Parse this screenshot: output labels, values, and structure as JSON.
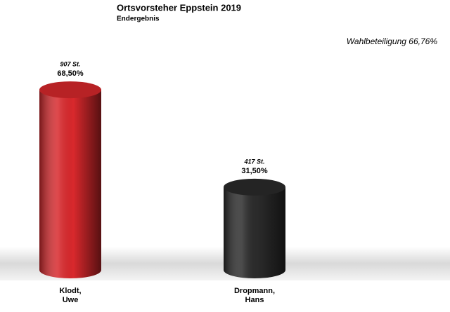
{
  "chart_data": {
    "type": "cylinder-bar",
    "title": "Ortsvorsteher Eppstein 2019",
    "subtitle": "Endergebnis",
    "annotation": "Wahlbeteiligung 66,76%",
    "categories": [
      "Klodt,\nUwe",
      "Dropmann,\nHans"
    ],
    "values": [
      68.5,
      31.5
    ],
    "value_labels": [
      "68,50%",
      "31,50%"
    ],
    "votes": [
      907,
      417
    ],
    "vote_labels": [
      "907 St.",
      "417 St."
    ],
    "colors": [
      "#d8282c",
      "#2b2b2b"
    ]
  }
}
